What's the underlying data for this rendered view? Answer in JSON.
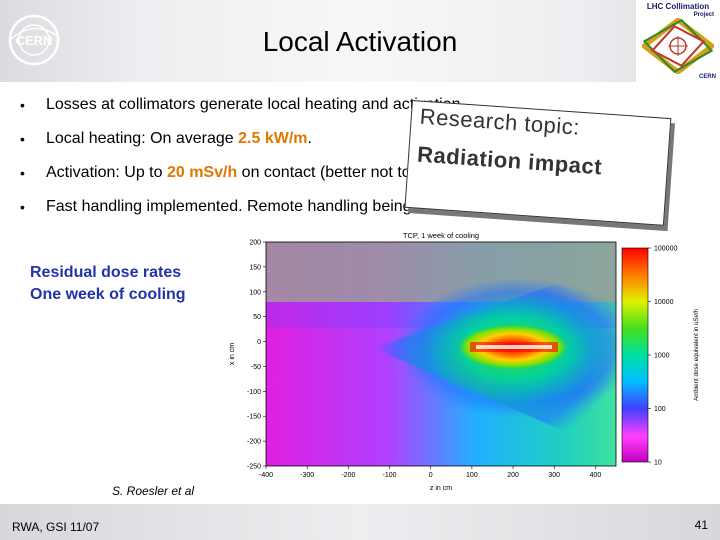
{
  "slide": {
    "title": "Local Activation",
    "bullets": [
      {
        "pre": "Losses at collimators generate local heating and activation.",
        "hl": "",
        "post": ""
      },
      {
        "pre": "Local heating: On average ",
        "hl": "2.5 kW/m",
        "post": "."
      },
      {
        "pre": "Activation: Up to ",
        "hl": "20 mSv/h",
        "post": " on contact (better not touch)."
      },
      {
        "pre": "Fast handling implemented. Remote handling being developed.",
        "hl": "",
        "post": ""
      }
    ],
    "callout": {
      "line1": "Research topic:",
      "line2": "Radiation impact"
    },
    "dose_label": {
      "line1": "Residual dose rates",
      "line2": "One week of cooling"
    },
    "author": "S. Roesler et al",
    "footer": {
      "left": "RWA, GSI 11/07",
      "page": "41"
    },
    "logos": {
      "cern": "CERN",
      "lhc_title": "LHC Collimation",
      "lhc_sub": "Project",
      "lhc_cern": "CERN"
    },
    "colors": {
      "highlight": "#e07800",
      "dose_label": "#2233aa"
    }
  },
  "chart_data": {
    "type": "heatmap",
    "title": "TCP, 1 week of cooling",
    "xlabel": "z in cm",
    "ylabel": "x in cm",
    "colorbar_label": "Ambient dose equivalent in uSv/h",
    "xlim": [
      -400,
      450
    ],
    "ylim": [
      -250,
      200
    ],
    "x_ticks": [
      -400,
      -300,
      -200,
      -100,
      0,
      100,
      200,
      300,
      400
    ],
    "y_ticks": [
      200,
      150,
      100,
      50,
      0,
      -50,
      -100,
      -150,
      -200,
      -250
    ],
    "colorbar_ticks": [
      "100000",
      "10000",
      "1000",
      "100",
      "10"
    ],
    "colorbar_range": [
      10,
      100000
    ],
    "colorbar_scale": "log"
  }
}
